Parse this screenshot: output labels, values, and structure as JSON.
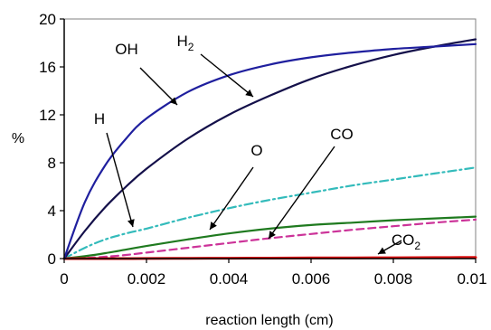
{
  "chart_data": {
    "type": "line",
    "xlabel": "reaction length (cm)",
    "ylabel": "%",
    "xlim": [
      0,
      0.01
    ],
    "ylim": [
      0,
      20
    ],
    "x_ticks": [
      0,
      0.002,
      0.004,
      0.006,
      0.008,
      0.01
    ],
    "x_tick_labels": [
      "0",
      "0.002",
      "0.004",
      "0.006",
      "0.008",
      "0.01"
    ],
    "y_ticks": [
      0,
      4,
      8,
      12,
      16,
      20
    ],
    "y_tick_labels": [
      "0",
      "4",
      "8",
      "12",
      "16",
      "20"
    ],
    "grid": false,
    "legend": "none",
    "x": [
      0,
      0.0005,
      0.001,
      0.0015,
      0.002,
      0.003,
      0.004,
      0.005,
      0.006,
      0.007,
      0.008,
      0.009,
      0.01
    ],
    "series": [
      {
        "name": "OH",
        "color": "#1f1f9e",
        "style": "solid",
        "values": [
          0,
          4.7,
          7.8,
          10.0,
          11.7,
          13.9,
          15.3,
          16.2,
          16.8,
          17.2,
          17.5,
          17.7,
          17.9
        ]
      },
      {
        "name": "H2",
        "color": "#14104a",
        "style": "solid",
        "values": [
          0,
          2.3,
          4.3,
          6.0,
          7.5,
          10.0,
          12.0,
          13.6,
          15.0,
          16.1,
          17.0,
          17.7,
          18.3
        ]
      },
      {
        "name": "H",
        "color": "#33bbbb",
        "style": "dashdot",
        "values": [
          0,
          0.9,
          1.6,
          2.1,
          2.5,
          3.4,
          4.2,
          4.9,
          5.5,
          6.1,
          6.6,
          7.1,
          7.6
        ]
      },
      {
        "name": "O",
        "color": "#1f7a1f",
        "style": "solid",
        "values": [
          0,
          0.2,
          0.45,
          0.75,
          1.05,
          1.6,
          2.1,
          2.5,
          2.8,
          3.0,
          3.2,
          3.35,
          3.5
        ]
      },
      {
        "name": "CO",
        "color": "#cc3399",
        "style": "dashed",
        "values": [
          0,
          0.05,
          0.15,
          0.3,
          0.5,
          0.9,
          1.3,
          1.7,
          2.05,
          2.4,
          2.7,
          3.0,
          3.25
        ]
      },
      {
        "name": "CO2",
        "color": "#dd1111",
        "style": "solid",
        "values": [
          0,
          0,
          0,
          0,
          0.01,
          0.02,
          0.03,
          0.04,
          0.05,
          0.06,
          0.07,
          0.08,
          0.1
        ]
      }
    ],
    "annotations": [
      {
        "series": "OH",
        "text": "OH",
        "sub": ""
      },
      {
        "series": "H2",
        "text": "H",
        "sub": "2"
      },
      {
        "series": "H",
        "text": "H",
        "sub": ""
      },
      {
        "series": "O",
        "text": "O",
        "sub": ""
      },
      {
        "series": "CO",
        "text": "CO",
        "sub": ""
      },
      {
        "series": "CO2",
        "text": "CO",
        "sub": "2"
      }
    ]
  }
}
